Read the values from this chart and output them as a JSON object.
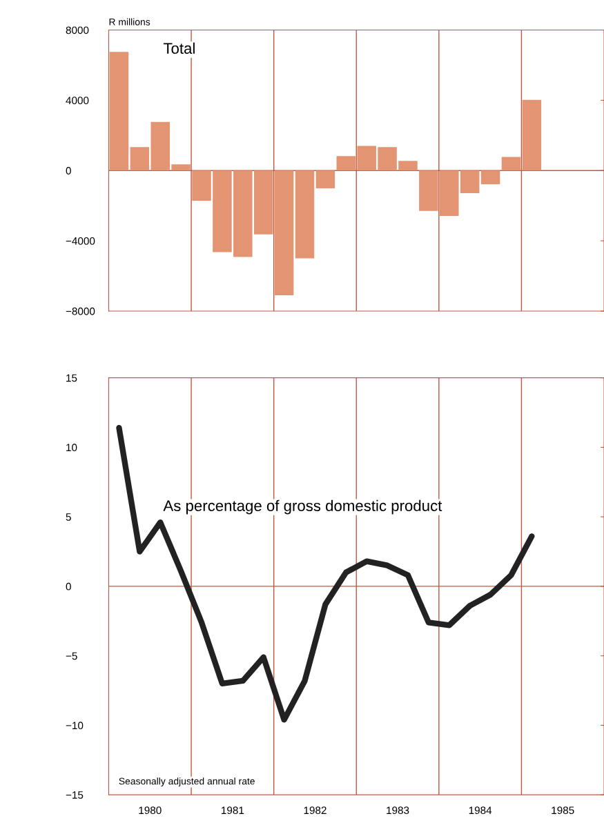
{
  "chart_data": [
    {
      "type": "bar",
      "ylabel": "R millions",
      "annotations": [
        "Total"
      ],
      "color": "#e39472",
      "x": [
        1980.125,
        1980.375,
        1980.625,
        1980.875,
        1981.125,
        1981.375,
        1981.625,
        1981.875,
        1982.125,
        1982.375,
        1982.625,
        1982.875,
        1983.125,
        1983.375,
        1983.625,
        1983.875,
        1984.125,
        1984.375,
        1984.625,
        1984.875,
        1985.125
      ],
      "values": [
        6750,
        1330,
        2770,
        350,
        -1720,
        -4640,
        -4920,
        -3630,
        -7100,
        -5000,
        -1010,
        820,
        1400,
        1330,
        550,
        -2300,
        -2580,
        -1290,
        -780,
        780,
        4020
      ],
      "xlim": [
        1980,
        1986
      ],
      "ylim": [
        -8000,
        8000
      ],
      "yticks": [
        8000,
        4000,
        0,
        {
          "value": -4000,
          "label": "−4000"
        },
        {
          "value": -8000,
          "label": "−8000"
        }
      ],
      "tick_labels": "y",
      "ref_lines": [
        {
          "axis": "y",
          "value": 0,
          "color": "#c0583e"
        },
        {
          "axis": "x",
          "value": 1981,
          "color": "#c0583e"
        },
        {
          "axis": "x",
          "value": 1982,
          "color": "#c0583e"
        },
        {
          "axis": "x",
          "value": 1983,
          "color": "#c0583e"
        },
        {
          "axis": "x",
          "value": 1984,
          "color": "#c0583e"
        },
        {
          "axis": "x",
          "value": 1985,
          "color": "#c0583e"
        }
      ]
    },
    {
      "type": "line",
      "annotations": [
        "As percentage of gross domestic product",
        "Seasonally adjusted annual rate"
      ],
      "color": "#222222",
      "x": [
        1980.125,
        1980.375,
        1980.625,
        1980.875,
        1981.125,
        1981.375,
        1981.625,
        1981.875,
        1982.125,
        1982.375,
        1982.625,
        1982.875,
        1983.125,
        1983.375,
        1983.625,
        1983.875,
        1984.125,
        1984.375,
        1984.625,
        1984.875,
        1985.125
      ],
      "values": [
        11.4,
        2.5,
        4.6,
        1.1,
        -2.6,
        -7.0,
        -6.8,
        -5.1,
        -9.6,
        -6.8,
        -1.3,
        1.0,
        1.8,
        1.5,
        0.8,
        -2.6,
        -2.8,
        -1.4,
        -0.6,
        0.8,
        3.6
      ],
      "xlim": [
        1980,
        1986
      ],
      "ylim": [
        -15,
        15
      ],
      "yticks": [
        15,
        10,
        5,
        0,
        {
          "value": -5,
          "label": "−5"
        },
        {
          "value": -10,
          "label": "−10"
        },
        {
          "value": -15,
          "label": "−15"
        }
      ],
      "xticks": [
        {
          "value": 1980.5,
          "label": "1980"
        },
        {
          "value": 1981.5,
          "label": "1981"
        },
        {
          "value": 1982.5,
          "label": "1982"
        },
        {
          "value": 1983.5,
          "label": "1983"
        },
        {
          "value": 1984.5,
          "label": "1984"
        },
        {
          "value": 1985.5,
          "label": "1985"
        }
      ],
      "ref_lines": [
        {
          "axis": "y",
          "value": 0,
          "color": "#c0583e"
        },
        {
          "axis": "x",
          "value": 1981,
          "color": "#c0583e"
        },
        {
          "axis": "x",
          "value": 1982,
          "color": "#c0583e"
        },
        {
          "axis": "x",
          "value": 1983,
          "color": "#c0583e"
        },
        {
          "axis": "x",
          "value": 1984,
          "color": "#c0583e"
        },
        {
          "axis": "x",
          "value": 1985,
          "color": "#c0583e"
        }
      ]
    }
  ]
}
